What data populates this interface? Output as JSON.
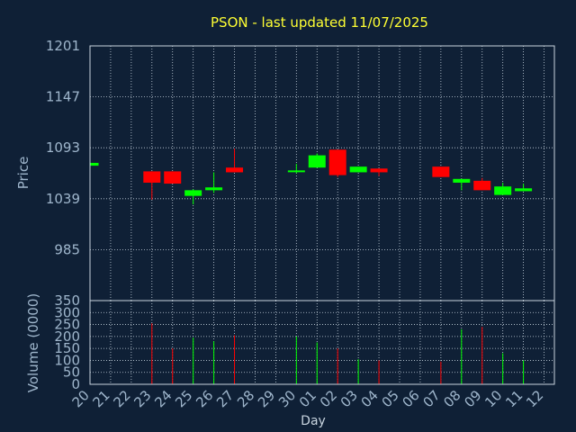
{
  "chart_data": {
    "type": "candlestick",
    "title": "PSON - last updated 11/07/2025",
    "xlabel": "Day",
    "ylabel_price": "Price",
    "ylabel_volume": "Volume (0000)",
    "x_ticks": [
      "20",
      "21",
      "22",
      "23",
      "24",
      "25",
      "26",
      "27",
      "28",
      "29",
      "30",
      "01",
      "02",
      "03",
      "04",
      "05",
      "06",
      "07",
      "08",
      "09",
      "10",
      "11",
      "12"
    ],
    "price_ticks": [
      1201,
      1147,
      1093,
      1039,
      985
    ],
    "price_range": [
      931,
      1201
    ],
    "volume_ticks": [
      350,
      300,
      250,
      200,
      150,
      100,
      50,
      0
    ],
    "volume_range": [
      0,
      350
    ],
    "up_color": "#00ff00",
    "down_color": "#ff0000",
    "candles": [
      {
        "day": "20",
        "open": 1074,
        "close": 1077,
        "high": 1077,
        "low": 1074,
        "volume": 0
      },
      {
        "day": "23",
        "open": 1068,
        "close": 1056,
        "high": 1068,
        "low": 1038,
        "volume": 255
      },
      {
        "day": "24",
        "open": 1068,
        "close": 1055,
        "high": 1068,
        "low": 1055,
        "volume": 150
      },
      {
        "day": "25",
        "open": 1042,
        "close": 1048,
        "high": 1049,
        "low": 1033,
        "volume": 195
      },
      {
        "day": "26",
        "open": 1048,
        "close": 1051,
        "high": 1067,
        "low": 1045,
        "volume": 180
      },
      {
        "day": "27",
        "open": 1072,
        "close": 1067,
        "high": 1092,
        "low": 1067,
        "volume": 205
      },
      {
        "day": "30",
        "open": 1069,
        "close": 1069,
        "high": 1076,
        "low": 1066,
        "volume": 200
      },
      {
        "day": "01",
        "open": 1072,
        "close": 1085,
        "high": 1087,
        "low": 1072,
        "volume": 175
      },
      {
        "day": "02",
        "open": 1091,
        "close": 1064,
        "high": 1091,
        "low": 1062,
        "volume": 150
      },
      {
        "day": "03",
        "open": 1067,
        "close": 1073,
        "high": 1073,
        "low": 1067,
        "volume": 105
      },
      {
        "day": "04",
        "open": 1071,
        "close": 1067,
        "high": 1071,
        "low": 1063,
        "volume": 100
      },
      {
        "day": "07",
        "open": 1073,
        "close": 1062,
        "high": 1073,
        "low": 1062,
        "volume": 95
      },
      {
        "day": "08",
        "open": 1056,
        "close": 1060,
        "high": 1060,
        "low": 1048,
        "volume": 230
      },
      {
        "day": "09",
        "open": 1058,
        "close": 1048,
        "high": 1061,
        "low": 1048,
        "volume": 240
      },
      {
        "day": "10",
        "open": 1043,
        "close": 1052,
        "high": 1056,
        "low": 1043,
        "volume": 130
      },
      {
        "day": "11",
        "open": 1047,
        "close": 1050,
        "high": 1055,
        "low": 1047,
        "volume": 100
      }
    ]
  }
}
